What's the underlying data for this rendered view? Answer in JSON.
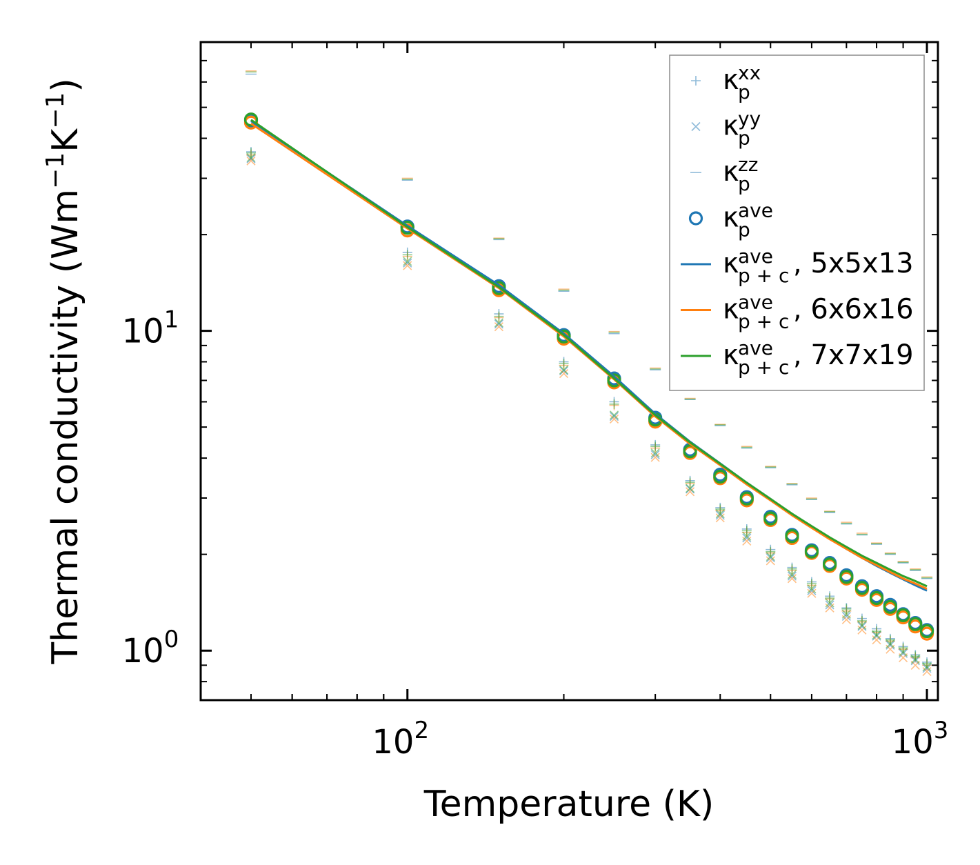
{
  "chart_data": {
    "type": "scatter",
    "xscale": "log",
    "yscale": "log",
    "xlim": [
      40,
      1050
    ],
    "ylim": [
      0.7,
      80
    ],
    "xlabel": "Temperature (K)",
    "ylabel_parts": [
      "Thermal conductivity (Wm",
      "−1",
      "K",
      "−1",
      ")"
    ],
    "x_ticks": [
      {
        "value": 100,
        "base": "10",
        "exp": "2"
      },
      {
        "value": 1000,
        "base": "10",
        "exp": "3"
      }
    ],
    "y_ticks": [
      {
        "value": 1,
        "base": "10",
        "exp": "0"
      },
      {
        "value": 10,
        "base": "10",
        "exp": "1"
      }
    ],
    "x": [
      50,
      100,
      150,
      200,
      250,
      300,
      350,
      400,
      450,
      500,
      550,
      600,
      650,
      700,
      750,
      800,
      850,
      900,
      950,
      1000
    ],
    "colors": {
      "blue": "#1f77b4",
      "orange": "#ff7f0e",
      "green": "#2ca02c"
    },
    "scatter_series": [
      {
        "name": "κ_p^xx",
        "marker": "plus",
        "component": "xx",
        "values": [
          [
            36.3,
            17.6,
            11.3,
            8.0,
            6.0,
            4.4,
            3.4,
            2.8,
            2.4,
            2.07,
            1.82,
            1.64,
            1.48,
            1.36,
            1.26,
            1.17,
            1.09,
            1.03,
            0.97,
            0.92
          ],
          [
            35.5,
            17.1,
            11.0,
            7.8,
            5.85,
            4.3,
            3.33,
            2.74,
            2.34,
            2.02,
            1.78,
            1.6,
            1.45,
            1.33,
            1.23,
            1.14,
            1.07,
            1.01,
            0.95,
            0.9
          ],
          [
            36.0,
            17.3,
            11.1,
            7.9,
            5.9,
            4.35,
            3.36,
            2.77,
            2.37,
            2.04,
            1.8,
            1.62,
            1.46,
            1.35,
            1.24,
            1.15,
            1.08,
            1.02,
            0.96,
            0.91
          ]
        ]
      },
      {
        "name": "κ_p^yy",
        "marker": "cross",
        "component": "yy",
        "values": [
          [
            34.5,
            16.3,
            10.5,
            7.5,
            5.4,
            4.1,
            3.2,
            2.65,
            2.25,
            1.95,
            1.71,
            1.54,
            1.39,
            1.28,
            1.19,
            1.11,
            1.04,
            0.98,
            0.93,
            0.88
          ],
          [
            34.0,
            16.0,
            10.3,
            7.35,
            5.3,
            4.02,
            3.14,
            2.6,
            2.2,
            1.91,
            1.68,
            1.51,
            1.36,
            1.25,
            1.16,
            1.08,
            1.01,
            0.95,
            0.9,
            0.86
          ],
          [
            34.8,
            16.5,
            10.6,
            7.55,
            5.45,
            4.15,
            3.22,
            2.68,
            2.28,
            1.97,
            1.73,
            1.56,
            1.41,
            1.3,
            1.2,
            1.12,
            1.05,
            0.99,
            0.94,
            0.89
          ]
        ]
      },
      {
        "name": "κ_p^zz",
        "marker": "hline",
        "component": "zz",
        "values": [
          [
            63.5,
            29.6,
            19.3,
            13.3,
            9.8,
            7.55,
            6.1,
            5.05,
            4.3,
            3.73,
            3.3,
            2.97,
            2.7,
            2.49,
            2.3,
            2.15,
            2.0,
            1.88,
            1.78,
            1.68
          ],
          [
            65.0,
            30.0,
            19.5,
            13.5,
            9.95,
            7.65,
            6.15,
            5.1,
            4.35,
            3.77,
            3.33,
            3.0,
            2.73,
            2.52,
            2.33,
            2.17,
            2.02,
            1.9,
            1.8,
            1.7
          ],
          [
            64.5,
            29.8,
            19.4,
            13.4,
            9.9,
            7.6,
            6.12,
            5.08,
            4.32,
            3.75,
            3.32,
            2.98,
            2.72,
            2.5,
            2.31,
            2.16,
            2.01,
            1.89,
            1.79,
            1.69
          ]
        ]
      },
      {
        "name": "κ_p^ave",
        "marker": "circle",
        "component": "ave",
        "values": [
          [
            45.5,
            21.2,
            13.8,
            9.7,
            7.1,
            5.35,
            4.25,
            3.55,
            3.02,
            2.62,
            2.3,
            2.06,
            1.88,
            1.72,
            1.59,
            1.48,
            1.39,
            1.3,
            1.22,
            1.16
          ],
          [
            44.8,
            20.6,
            13.4,
            9.45,
            6.9,
            5.2,
            4.15,
            3.46,
            2.95,
            2.56,
            2.25,
            2.02,
            1.84,
            1.68,
            1.55,
            1.44,
            1.35,
            1.27,
            1.19,
            1.13
          ],
          [
            45.8,
            21.0,
            13.6,
            9.6,
            7.0,
            5.28,
            4.2,
            3.5,
            2.99,
            2.59,
            2.28,
            2.04,
            1.86,
            1.7,
            1.57,
            1.46,
            1.37,
            1.29,
            1.21,
            1.15
          ]
        ]
      }
    ],
    "line_series": [
      {
        "name": "5x5x13",
        "color": "#1f77b4",
        "values": [
          45.3,
          21.3,
          13.9,
          9.8,
          7.2,
          5.5,
          4.5,
          3.85,
          3.35,
          2.98,
          2.67,
          2.43,
          2.24,
          2.08,
          1.95,
          1.84,
          1.75,
          1.67,
          1.6,
          1.54
        ]
      },
      {
        "name": "6x6x16",
        "color": "#ff7f0e",
        "values": [
          44.5,
          20.9,
          13.6,
          9.6,
          7.05,
          5.4,
          4.43,
          3.8,
          3.31,
          2.95,
          2.65,
          2.42,
          2.23,
          2.08,
          1.95,
          1.85,
          1.76,
          1.68,
          1.62,
          1.56
        ]
      },
      {
        "name": "7x7x19",
        "color": "#2ca02c",
        "values": [
          45.7,
          21.1,
          13.7,
          9.7,
          7.1,
          5.45,
          4.48,
          3.84,
          3.35,
          2.98,
          2.68,
          2.45,
          2.26,
          2.11,
          1.98,
          1.88,
          1.79,
          1.71,
          1.65,
          1.59
        ]
      }
    ],
    "legend": {
      "placement": "top-right",
      "entries": [
        {
          "symbol": "κ",
          "sub": "p",
          "sup": "xx",
          "suffix": "",
          "marker": "plus"
        },
        {
          "symbol": "κ",
          "sub": "p",
          "sup": "yy",
          "suffix": "",
          "marker": "cross"
        },
        {
          "symbol": "κ",
          "sub": "p",
          "sup": "zz",
          "suffix": "",
          "marker": "hline"
        },
        {
          "symbol": "κ",
          "sub": "p",
          "sup": "ave",
          "suffix": "",
          "marker": "circle"
        },
        {
          "symbol": "κ",
          "sub": "p + c",
          "sup": "ave",
          "suffix": ", 5x5x13",
          "marker": "line",
          "color": "#1f77b4"
        },
        {
          "symbol": "κ",
          "sub": "p + c",
          "sup": "ave",
          "suffix": ", 6x6x16",
          "marker": "line",
          "color": "#ff7f0e"
        },
        {
          "symbol": "κ",
          "sub": "p + c",
          "sup": "ave",
          "suffix": ", 7x7x19",
          "marker": "line",
          "color": "#2ca02c"
        }
      ]
    }
  }
}
